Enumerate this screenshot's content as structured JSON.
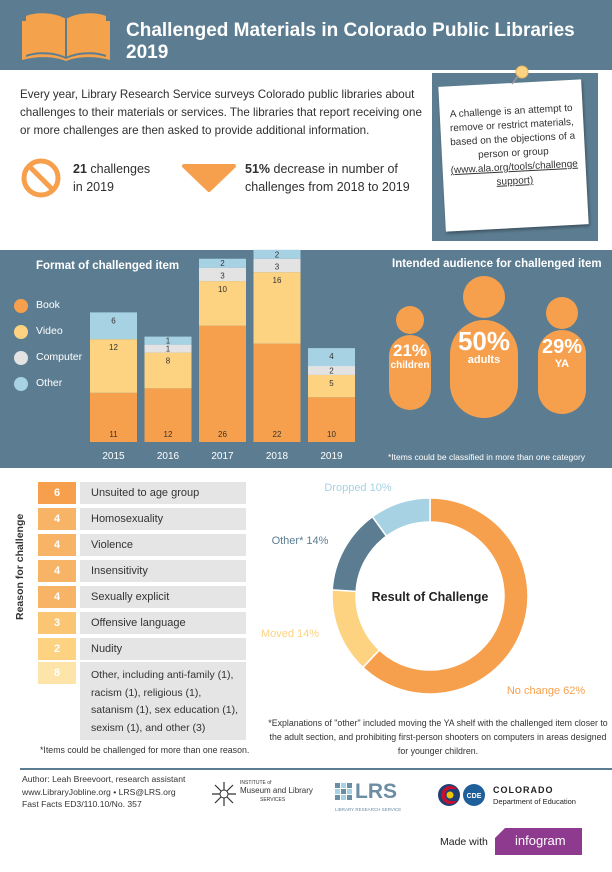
{
  "header": {
    "title": "Challenged Materials in Colorado Public Libraries 2019",
    "icon": "open-book-icon",
    "bg_color": "#5c7d91",
    "icon_color": "#f4a24b"
  },
  "intro": {
    "text": "Every year, Library Research Service surveys Colorado public libraries about challenges to their materials or services. The libraries that report receiving one or more challenges are then asked to provide additional information."
  },
  "stats": {
    "challenges_bold": "21",
    "challenges_rest": " challenges",
    "challenges_line2": "in 2019",
    "decrease_bold": "51%",
    "decrease_rest": " decrease in number of",
    "decrease_line2": "challenges from 2018 to 2019"
  },
  "definition_note": {
    "text": "A challenge is an attempt to remove or restrict materials, based on the objections of a person or group",
    "link": "(www.ala.org/tools/challenge support)"
  },
  "format_chart": {
    "legend_title": "Format of challenged item",
    "audience_title": "Intended audience for challenged item"
  },
  "chart_data": [
    {
      "type": "bar",
      "title": "Format of challenged item",
      "stacked": true,
      "categories": [
        "2015",
        "2016",
        "2017",
        "2018",
        "2019"
      ],
      "series": [
        {
          "name": "Book",
          "color": "#f6a04d",
          "values": [
            11,
            12,
            26,
            22,
            10
          ]
        },
        {
          "name": "Video",
          "color": "#fdd382",
          "values": [
            12,
            8,
            10,
            16,
            5
          ]
        },
        {
          "name": "Computer",
          "color": "#e3e3e3",
          "values": [
            0,
            1,
            3,
            3,
            2
          ]
        },
        {
          "name": "Other",
          "color": "#a6d2e4",
          "values": [
            6,
            1,
            2,
            2,
            4
          ]
        }
      ],
      "legend": "left",
      "grid": false
    },
    {
      "type": "pie",
      "title": "Result of Challenge",
      "donut": true,
      "slices": [
        {
          "label": "No change",
          "value": 62,
          "display": "No change 62%",
          "color": "#f6a04d"
        },
        {
          "label": "Moved",
          "value": 14,
          "display": "Moved 14%",
          "color": "#fdd382"
        },
        {
          "label": "Other*",
          "value": 14,
          "display": "Other* 14%",
          "color": "#5c7d91"
        },
        {
          "label": "Dropped",
          "value": 10,
          "display": "Dropped 10%",
          "color": "#a6d2e4"
        }
      ]
    }
  ],
  "audience": {
    "items": [
      {
        "pct": "21%",
        "label": "children"
      },
      {
        "pct": "50%",
        "label": "adults"
      },
      {
        "pct": "29%",
        "label": "YA"
      }
    ],
    "color": "#f6a04d",
    "footnote": "*Items could be classified in more than one category"
  },
  "reasons": {
    "axis_label": "Reason for challenge",
    "rows": [
      {
        "count": "6",
        "label": "Unsuited to age group",
        "color": "#f6a04d"
      },
      {
        "count": "4",
        "label": "Homosexuality",
        "color": "#f8b466"
      },
      {
        "count": "4",
        "label": "Violence",
        "color": "#f8b466"
      },
      {
        "count": "4",
        "label": "Insensitivity",
        "color": "#f8b466"
      },
      {
        "count": "4",
        "label": "Sexually explicit",
        "color": "#f8b466"
      },
      {
        "count": "3",
        "label": "Offensive language",
        "color": "#fbc674"
      },
      {
        "count": "2",
        "label": "Nudity",
        "color": "#fdd382"
      }
    ],
    "other": {
      "count": "8",
      "label": "Other, including anti-family (1), racism (1), religious (1), satanism (1), sex education (1), sexism (1), and other (3)",
      "color": "#fde4a8"
    },
    "footnote": "*Items could be challenged for more than one reason."
  },
  "result": {
    "footnote": "*Explanations of \"other\" included moving the YA shelf with the challenged item closer to the adult section, and prohibiting first-person shooters on computers in areas designed for younger children."
  },
  "footer": {
    "author": "Author: Leah Breevoort, research assistant",
    "links": "www.LibraryJobline.org • LRS@LRS.org",
    "fastfacts": "Fast Facts ED3/110.10/No. 357",
    "imls_top": "INSTITUTE of",
    "imls_main": "Museum and Library",
    "imls_sub": "SERVICES",
    "lrs": "LRS",
    "lrs_sub": "LIBRARY RESEARCH SERVICE",
    "cde_top": "COLORADO",
    "cde_sub": "Department of Education",
    "cde_badge": "CDE",
    "made_with": "Made with",
    "infogram": "infogram"
  }
}
